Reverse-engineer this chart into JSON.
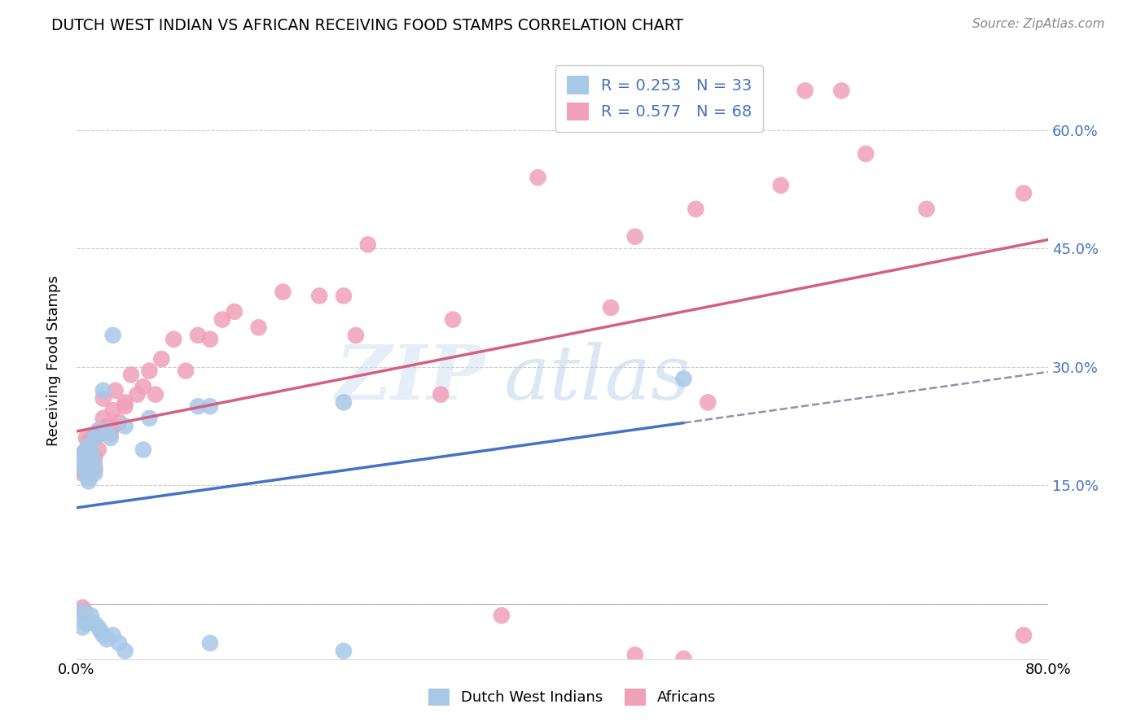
{
  "title": "DUTCH WEST INDIAN VS AFRICAN RECEIVING FOOD STAMPS CORRELATION CHART",
  "source": "Source: ZipAtlas.com",
  "ylabel": "Receiving Food Stamps",
  "xlim": [
    0.0,
    0.8
  ],
  "ylim": [
    -0.07,
    0.685
  ],
  "yticks": [
    0.0,
    0.15,
    0.3,
    0.45,
    0.6
  ],
  "yticklabels_right": [
    "",
    "15.0%",
    "30.0%",
    "45.0%",
    "60.0%"
  ],
  "xticks": [
    0.0,
    0.1,
    0.2,
    0.3,
    0.4,
    0.5,
    0.6,
    0.7,
    0.8
  ],
  "xticklabels": [
    "0.0%",
    "",
    "",
    "",
    "",
    "",
    "",
    "",
    "80.0%"
  ],
  "watermark_zip": "ZIP",
  "watermark_atlas": "atlas",
  "color_dwi": "#a8c8e8",
  "color_african": "#f0a0b8",
  "color_line_dwi": "#4472c4",
  "color_line_african": "#d46080",
  "color_line_dwi_dash": "#9090b0",
  "background_color": "#ffffff",
  "legend_labels": [
    "R = 0.253   N = 33",
    "R = 0.577   N = 68"
  ],
  "bottom_labels": [
    "Dutch West Indians",
    "Africans"
  ],
  "dwi_x": [
    0.005,
    0.005,
    0.005,
    0.007,
    0.007,
    0.008,
    0.008,
    0.008,
    0.01,
    0.01,
    0.01,
    0.01,
    0.01,
    0.012,
    0.012,
    0.013,
    0.015,
    0.015,
    0.015,
    0.018,
    0.018,
    0.02,
    0.022,
    0.025,
    0.028,
    0.03,
    0.04,
    0.055,
    0.06,
    0.1,
    0.11,
    0.22,
    0.5
  ],
  "dwi_y": [
    0.175,
    0.18,
    0.185,
    0.185,
    0.19,
    0.165,
    0.17,
    0.195,
    0.155,
    0.16,
    0.175,
    0.195,
    0.2,
    0.165,
    0.18,
    0.19,
    0.165,
    0.175,
    0.21,
    0.215,
    0.22,
    0.215,
    0.27,
    0.22,
    0.21,
    0.34,
    0.225,
    0.195,
    0.235,
    0.25,
    0.25,
    0.255,
    0.285
  ],
  "dwi_neg_x": [
    0.005,
    0.005,
    0.005,
    0.008,
    0.012,
    0.015,
    0.018,
    0.02,
    0.022,
    0.025,
    0.03,
    0.035,
    0.04,
    0.11,
    0.22
  ],
  "dwi_neg_y": [
    -0.01,
    -0.02,
    -0.03,
    -0.025,
    -0.015,
    -0.025,
    -0.03,
    -0.035,
    -0.04,
    -0.045,
    -0.04,
    -0.05,
    -0.06,
    -0.05,
    -0.06
  ],
  "african_x": [
    0.005,
    0.005,
    0.005,
    0.007,
    0.007,
    0.008,
    0.008,
    0.008,
    0.01,
    0.01,
    0.01,
    0.01,
    0.012,
    0.012,
    0.013,
    0.015,
    0.015,
    0.015,
    0.018,
    0.018,
    0.02,
    0.022,
    0.022,
    0.025,
    0.028,
    0.03,
    0.03,
    0.032,
    0.035,
    0.04,
    0.04,
    0.045,
    0.05,
    0.055,
    0.06,
    0.065,
    0.07,
    0.08,
    0.09,
    0.1,
    0.11,
    0.12,
    0.13,
    0.15,
    0.17,
    0.2,
    0.22,
    0.23,
    0.24,
    0.3,
    0.31,
    0.38,
    0.44,
    0.46,
    0.51,
    0.52,
    0.58,
    0.6,
    0.63,
    0.65,
    0.7,
    0.78
  ],
  "african_y": [
    0.165,
    0.17,
    0.19,
    0.175,
    0.185,
    0.175,
    0.195,
    0.21,
    0.16,
    0.17,
    0.195,
    0.205,
    0.165,
    0.185,
    0.21,
    0.17,
    0.185,
    0.21,
    0.195,
    0.215,
    0.22,
    0.235,
    0.26,
    0.225,
    0.215,
    0.225,
    0.245,
    0.27,
    0.23,
    0.25,
    0.255,
    0.29,
    0.265,
    0.275,
    0.295,
    0.265,
    0.31,
    0.335,
    0.295,
    0.34,
    0.335,
    0.36,
    0.37,
    0.35,
    0.395,
    0.39,
    0.39,
    0.34,
    0.455,
    0.265,
    0.36,
    0.54,
    0.375,
    0.465,
    0.5,
    0.255,
    0.53,
    0.65,
    0.65,
    0.57,
    0.5,
    0.52
  ],
  "african_neg_x": [
    0.005,
    0.007,
    0.35,
    0.5,
    0.46,
    0.78
  ],
  "african_neg_y": [
    -0.005,
    -0.01,
    -0.015,
    -0.07,
    -0.065,
    -0.04
  ]
}
